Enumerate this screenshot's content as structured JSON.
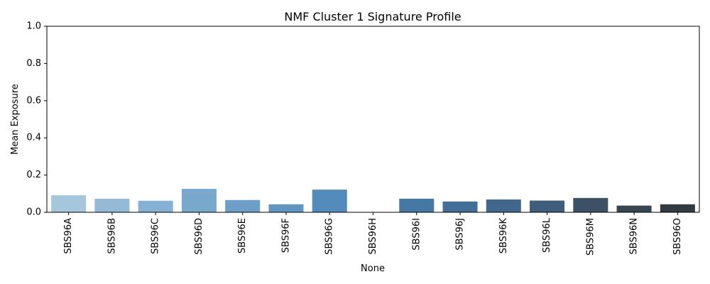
{
  "chart_data": {
    "type": "bar",
    "title": "NMF Cluster 1 Signature Profile",
    "xlabel": "None",
    "ylabel": "Mean Exposure",
    "ylim": [
      0,
      1.0
    ],
    "yticks": [
      "0.0",
      "0.2",
      "0.4",
      "0.6",
      "0.8",
      "1.0"
    ],
    "grid": false,
    "categories": [
      "SBS96A",
      "SBS96B",
      "SBS96C",
      "SBS96D",
      "SBS96E",
      "SBS96F",
      "SBS96G",
      "SBS96H",
      "SBS96I",
      "SBS96J",
      "SBS96K",
      "SBS96L",
      "SBS96M",
      "SBS96N",
      "SBS96O"
    ],
    "values": [
      0.092,
      0.073,
      0.062,
      0.126,
      0.066,
      0.043,
      0.122,
      0.0,
      0.073,
      0.058,
      0.069,
      0.063,
      0.077,
      0.036,
      0.043
    ],
    "colors": [
      "#a6c6de",
      "#94bad8",
      "#85b1d4",
      "#78a9cc",
      "#6c9ec7",
      "#5f97c2",
      "#538cba",
      "#4a84b3",
      "#4579a4",
      "#436e98",
      "#41678c",
      "#3f5e7c",
      "#3c5166",
      "#374653",
      "#323a42"
    ]
  }
}
